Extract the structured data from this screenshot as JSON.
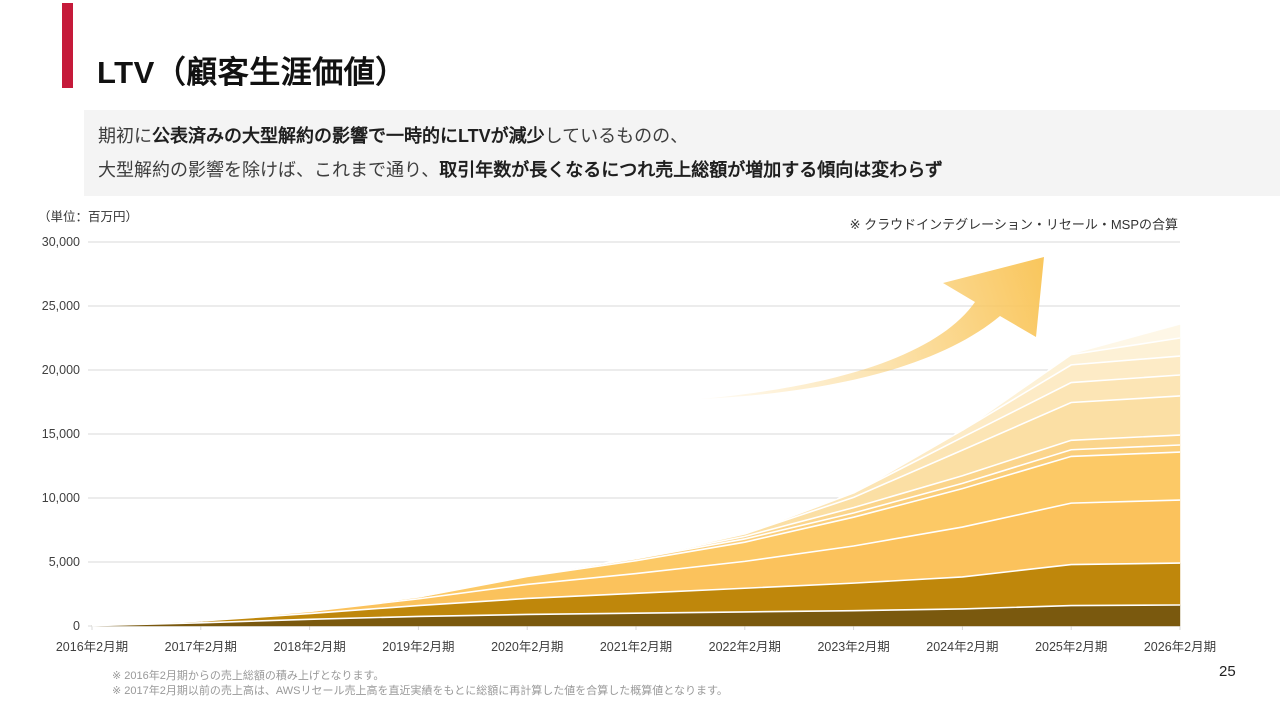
{
  "slide": {
    "title": "LTV（顧客生涯価値）",
    "page_number": "25",
    "lead": {
      "line1": [
        {
          "text": "期初に",
          "bold": false
        },
        {
          "text": "公表済みの大型解約の影響で一時的にLTVが減少",
          "bold": true
        },
        {
          "text": "しているものの、",
          "bold": false
        }
      ],
      "line2": [
        {
          "text": "大型解約の影響を除けば、これまで通り、",
          "bold": false
        },
        {
          "text": "取引年数が長くなるにつれ売上総額が増加する傾向は変わらず",
          "bold": true
        }
      ]
    },
    "unit_label": "（単位：百万円）",
    "scope_note": "※ クラウドインテグレーション・リセール・MSPの合算",
    "footnotes": [
      "※ 2016年2月期からの売上総額の積み上げとなります。",
      "※ 2017年2月期以前の売上高は、AWSリセール売上高を直近実績をもとに総額に再計算した値を合算した概算値となります。"
    ],
    "colors": {
      "accent": "#C51A3A",
      "lead_background": "#F4F4F4"
    }
  },
  "chart_data": {
    "type": "area",
    "stacked": true,
    "title": "",
    "xlabel": "",
    "ylabel": "（単位：百万円）",
    "x": [
      "2016年2月期",
      "2017年2月期",
      "2018年2月期",
      "2019年2月期",
      "2020年2月期",
      "2021年2月期",
      "2022年2月期",
      "2023年2月期",
      "2024年2月期",
      "2025年2月期",
      "2026年2月期"
    ],
    "ylim": [
      0,
      30000
    ],
    "yticks": [
      0,
      5000,
      10000,
      15000,
      20000,
      25000,
      30000
    ],
    "ytick_labels": [
      "0",
      "5,000",
      "10,000",
      "15,000",
      "20,000",
      "25,000",
      "30,000"
    ],
    "grid": true,
    "legend": false,
    "series": [
      {
        "color": "#7A590E",
        "values": [
          30,
          250,
          520,
          750,
          900,
          1000,
          1100,
          1200,
          1330,
          1600,
          1640
        ]
      },
      {
        "color": "#BF870B",
        "values": [
          0,
          140,
          450,
          850,
          1250,
          1550,
          1850,
          2150,
          2500,
          3200,
          3280
        ]
      },
      {
        "color": "#FBC25C",
        "values": [
          0,
          0,
          180,
          520,
          1100,
          1550,
          2100,
          2900,
          3900,
          4800,
          4920
        ]
      },
      {
        "color": "#FCC966",
        "values": [
          0,
          0,
          0,
          150,
          620,
          1000,
          1500,
          2250,
          3000,
          3650,
          3750
        ]
      },
      {
        "color": "#FBCF7C",
        "values": [
          0,
          0,
          0,
          0,
          80,
          160,
          250,
          330,
          410,
          520,
          550
        ]
      },
      {
        "color": "#FBD58C",
        "values": [
          0,
          0,
          0,
          0,
          0,
          50,
          200,
          420,
          600,
          740,
          780
        ]
      },
      {
        "color": "#FBDFA4",
        "values": [
          0,
          0,
          0,
          0,
          0,
          0,
          200,
          800,
          2000,
          2950,
          3050
        ]
      },
      {
        "color": "#FCE5B5",
        "values": [
          0,
          0,
          0,
          0,
          0,
          0,
          0,
          350,
          1000,
          1560,
          1640
        ]
      },
      {
        "color": "#FDEBC6",
        "values": [
          0,
          0,
          0,
          0,
          0,
          0,
          0,
          0,
          560,
          1380,
          1480
        ]
      },
      {
        "color": "#FDF1D6",
        "values": [
          0,
          0,
          0,
          0,
          0,
          0,
          0,
          0,
          0,
          800,
          1410
        ]
      },
      {
        "color": "#FEF7E7",
        "values": [
          0,
          0,
          0,
          0,
          0,
          0,
          0,
          0,
          0,
          0,
          1020
        ]
      }
    ],
    "colors": {
      "gridline": "#D9D9D9",
      "axis_text": "#404040",
      "separator": "#FFFFFF",
      "arrow": "#F9C75F"
    }
  }
}
